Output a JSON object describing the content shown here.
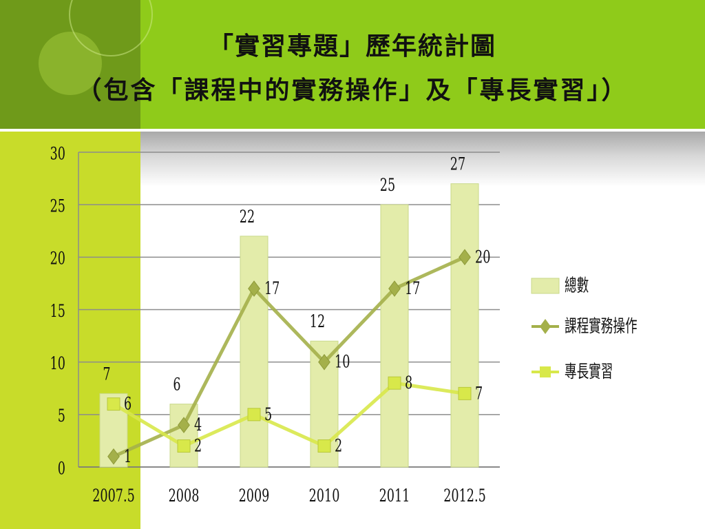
{
  "slide": {
    "title_line1": "「實習專題」歷年統計圖",
    "title_line2": "（包含「課程中的實務操作」及「專長實習」）"
  },
  "colors": {
    "header_green": "#8fcb1a",
    "header_dark": "#6f9a1a",
    "left_band": "#c8dc2a",
    "bar_fill": "#e3ecaa",
    "line_practice": "#a4b04a",
    "line_specialty": "#d8e84a",
    "grid": "#8c8c8c"
  },
  "chart_data": {
    "type": "bar",
    "categories": [
      "2007.5",
      "2008",
      "2009",
      "2010",
      "2011",
      "2012.5"
    ],
    "ylim": [
      0,
      30
    ],
    "yticks": [
      0,
      5,
      10,
      15,
      20,
      25,
      30
    ],
    "grid": true,
    "legend_position": "right",
    "series": [
      {
        "name": "總數",
        "kind": "bar",
        "values": [
          7,
          6,
          22,
          12,
          25,
          27
        ]
      },
      {
        "name": "課程實務操作",
        "kind": "line",
        "marker": "diamond",
        "values": [
          1,
          4,
          17,
          10,
          17,
          20
        ]
      },
      {
        "name": "專長實習",
        "kind": "line",
        "marker": "square",
        "values": [
          6,
          2,
          5,
          2,
          8,
          7
        ]
      }
    ]
  }
}
